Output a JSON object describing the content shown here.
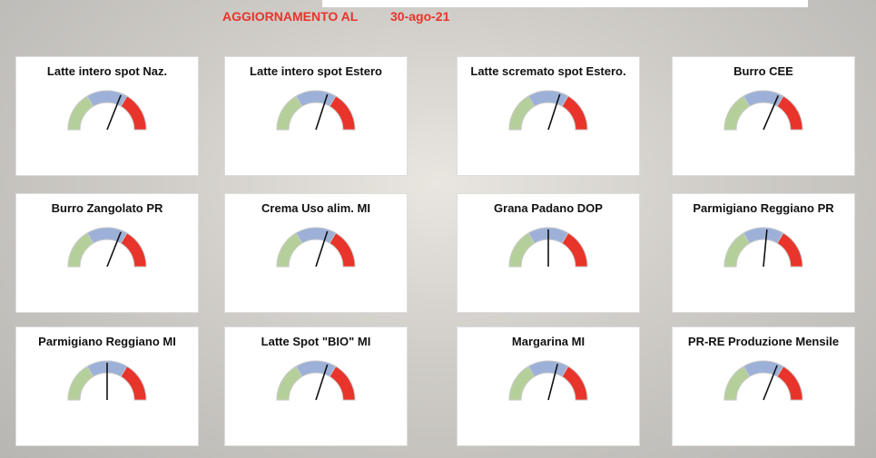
{
  "header": {
    "label": "AGGIORNAMENTO AL",
    "date": "30-ago-21"
  },
  "gauge_range": [
    0,
    100
  ],
  "bands": [
    {
      "from": 0,
      "to": 33,
      "color": "#b5cf9a"
    },
    {
      "from": 33,
      "to": 67,
      "color": "#9db1d8"
    },
    {
      "from": 67,
      "to": 100,
      "color": "#e8342a"
    }
  ],
  "gauges": [
    {
      "title": "Latte intero spot Naz.",
      "needle": 62
    },
    {
      "title": "Latte intero spot Estero",
      "needle": 60
    },
    {
      "title": "Latte scremato spot Estero.",
      "needle": 60
    },
    {
      "title": "Burro CEE",
      "needle": 63
    },
    {
      "title": "Burro Zangolato PR",
      "needle": 62
    },
    {
      "title": "Crema Uso alim. MI",
      "needle": 60
    },
    {
      "title": "Grana Padano DOP",
      "needle": 50
    },
    {
      "title": "Parmigiano Reggiano PR",
      "needle": 53
    },
    {
      "title": "Parmigiano Reggiano MI",
      "needle": 50
    },
    {
      "title": "Latte Spot \"BIO\" MI",
      "needle": 60
    },
    {
      "title": "Margarina MI",
      "needle": 58
    },
    {
      "title": "PR-RE Produzione Mensile",
      "needle": 62
    }
  ]
}
